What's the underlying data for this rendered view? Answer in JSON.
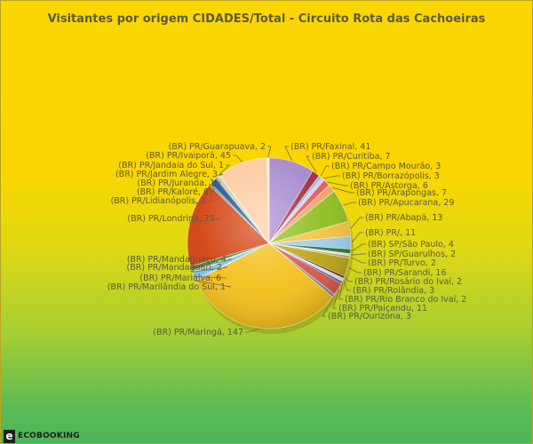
{
  "chart_data": {
    "type": "pie",
    "title": "Visitantes por origem CIDADES/Total - Circuito Rota das Cachoeiras",
    "slices": [
      {
        "label": "(BR) PR/Faxinal, 41",
        "value": 41,
        "color": "#a488cf"
      },
      {
        "label": "(BR) PR/Curitiba, 7",
        "value": 7,
        "color": "#a32a36"
      },
      {
        "label": "(BR) PR/Campo Mourão, 3",
        "value": 3,
        "color": "#9cb8e0"
      },
      {
        "label": "(BR) PR/Borrazópolis, 3",
        "value": 3,
        "color": "#d9ccee"
      },
      {
        "label": "(BR) PR/Astorga, 6",
        "value": 6,
        "color": "#e25a5a"
      },
      {
        "label": "(BR) PR/Arapongas, 7",
        "value": 7,
        "color": "#f2a468"
      },
      {
        "label": "(BR) PR/Apucarana, 29",
        "value": 29,
        "color": "#8cbf1d"
      },
      {
        "label": "(BR) PR/Abapã, 13",
        "value": 13,
        "color": "#f3c43e"
      },
      {
        "label": "(BR) PR/, 11",
        "value": 11,
        "color": "#9ecbee"
      },
      {
        "label": "(BR) SP/São Paulo, 4",
        "value": 4,
        "color": "#2a7a2a"
      },
      {
        "label": "(BR) SP/Guarulhos, 2",
        "value": 2,
        "color": "#e8e8e8"
      },
      {
        "label": "(BR) PR/Turvo, 2",
        "value": 2,
        "color": "#c8a06a"
      },
      {
        "label": "(BR) PR/Sarandi, 16",
        "value": 16,
        "color": "#b8a414"
      },
      {
        "label": "(BR) PR/Rosário do Ivaí, 2",
        "value": 2,
        "color": "#6a2a2a"
      },
      {
        "label": "(BR) PR/Rolândia, 3",
        "value": 3,
        "color": "#f0dede"
      },
      {
        "label": "(BR) PR/Rio Branco do Ivaí, 2",
        "value": 2,
        "color": "#3a6ab0"
      },
      {
        "label": "(BR) PR/Paiçandu, 11",
        "value": 11,
        "color": "#d8544a"
      },
      {
        "label": "(BR) PR/Ourizona, 3",
        "value": 3,
        "color": "#8a8a8a"
      },
      {
        "label": "(BR) PR/Maringá, 147",
        "value": 147,
        "color": "#f4bf18"
      },
      {
        "label": "(BR) PR/Marilândia do Sul, 1",
        "value": 1,
        "color": "#9ab4d4"
      },
      {
        "label": "(BR) PR/Marialva, 6",
        "value": 6,
        "color": "#7ec4e8"
      },
      {
        "label": "(BR) PR/Mandaguari, 2",
        "value": 2,
        "color": "#d8d8d8"
      },
      {
        "label": "(BR) PR/Mandaguaçu, 4",
        "value": 4,
        "color": "#3a8a3a"
      },
      {
        "label": "(BR) PR/Londrina, 75",
        "value": 75,
        "color": "#d2400e"
      },
      {
        "label": "(BR) PR/Lidianópolis, 2",
        "value": 2,
        "color": "#7a9a5a"
      },
      {
        "label": "(BR) PR/Kaloré, 6",
        "value": 6,
        "color": "#1e4e9e"
      },
      {
        "label": "(BR) PR/Juranda, 1",
        "value": 1,
        "color": "#c03a3a"
      },
      {
        "label": "(BR) PR/Jardim Alegre, 3",
        "value": 3,
        "color": "#b6d2a0"
      },
      {
        "label": "(BR) PR/Jandaia do Sul, 1",
        "value": 1,
        "color": "#e0c8b8"
      },
      {
        "label": "(BR) PR/Ivaiporã, 45",
        "value": 45,
        "color": "#fdc99e"
      },
      {
        "label": "(BR) PR/Guarapuava, 2",
        "value": 2,
        "color": "#f4eedc"
      }
    ]
  },
  "brand": {
    "mark": "e",
    "text": "ECOBOOKING"
  }
}
